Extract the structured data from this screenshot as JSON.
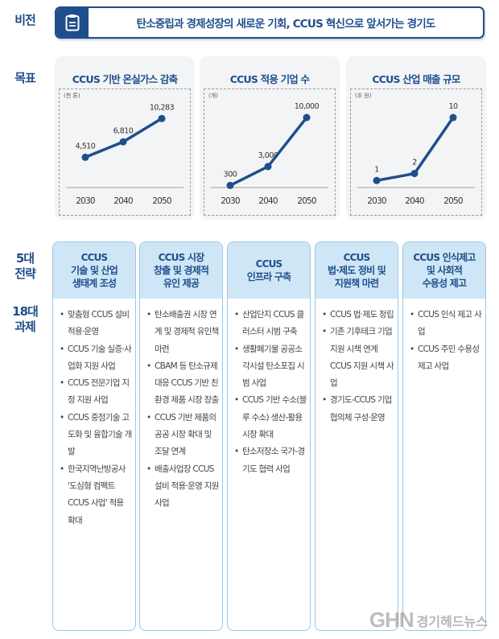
{
  "labels": {
    "vision": "비전",
    "goals": "목표",
    "strategies": "5대\n전략",
    "tasks": "18대\n과제"
  },
  "vision": {
    "icon": "clipboard-icon",
    "text": "탄소중립과 경제성장의 새로운 기회, CCUS 혁신으로 앞서가는 경기도"
  },
  "colors": {
    "primary": "#1f4e8c",
    "header_bg": "#cfe6f6",
    "border": "#9dc6e6"
  },
  "chart_data": [
    {
      "type": "line",
      "title": "CCUS 기반 온실가스 감축",
      "unit": "(천 톤)",
      "categories": [
        "2030",
        "2040",
        "2050"
      ],
      "values": [
        4510,
        6810,
        10283
      ],
      "labels": [
        "4,510",
        "6,810",
        "10,283"
      ],
      "ylim": [
        0,
        12000
      ]
    },
    {
      "type": "line",
      "title": "CCUS 적용 기업 수",
      "unit": "(개)",
      "categories": [
        "2030",
        "2040",
        "2050"
      ],
      "values": [
        300,
        3000,
        10000
      ],
      "labels": [
        "300",
        "3,000",
        "10,000"
      ],
      "ylim": [
        0,
        11500
      ]
    },
    {
      "type": "line",
      "title": "CCUS 산업 매출 규모",
      "unit": "(조 원)",
      "categories": [
        "2030",
        "2040",
        "2050"
      ],
      "values": [
        1,
        2,
        10
      ],
      "labels": [
        "1",
        "2",
        "10"
      ],
      "ylim": [
        0,
        11.5
      ]
    }
  ],
  "strategies": [
    {
      "title": "CCUS\n기술 및 산업\n생태계 조성",
      "tasks": [
        "맞춤형 CCUS 설비 적용·운영",
        "CCUS 기술 실증·사업화 지원 사업",
        "CCUS 전문기업 지정 지원 사업",
        "CCUS 중점기술 고도화 및 융합기술 개발",
        "한국지역난방공사 '도심형 컴팩트 CCUS 사업' 적용 확대"
      ]
    },
    {
      "title": "CCUS 시장\n창출 및 경제적\n유인 제공",
      "tasks": [
        "탄소배출권 시장 연계 및 경제적 유인책 마련",
        "CBAM 등 탄소규제 대응 CCUS 기반 친환경 제품 시장 창출",
        "CCUS 기반 제품의 공공 시장 확대 및 조달 연계",
        "배출사업장 CCUS 설비 적용·운영 지원 사업"
      ]
    },
    {
      "title": "CCUS\n인프라 구축",
      "tasks": [
        "산업단지 CCUS 클러스터 시범 구축",
        "생활폐기물 공공소각시설 탄소포집 시범 사업",
        "CCUS 기반 수소(블루 수소) 생산-활용 시장 확대",
        "탄소저장소 국가-경기도 협력 사업"
      ]
    },
    {
      "title": "CCUS\n법·제도 정비 및\n지원책 마련",
      "tasks": [
        "CCUS 법·제도 정립",
        "기존 기후테크 기업 지원 시책 연계 CCUS 지원 시책 사업",
        "경기도-CCUS 기업협의체 구성·운영"
      ]
    },
    {
      "title": "CCUS 인식제고\n및 사회적\n수용성 제고",
      "tasks": [
        "CCUS 인식 제고 사업",
        "CCUS 주민 수용성 제고 사업"
      ]
    }
  ],
  "watermark": {
    "logo": "GHN",
    "name": "경기헤드뉴스"
  }
}
